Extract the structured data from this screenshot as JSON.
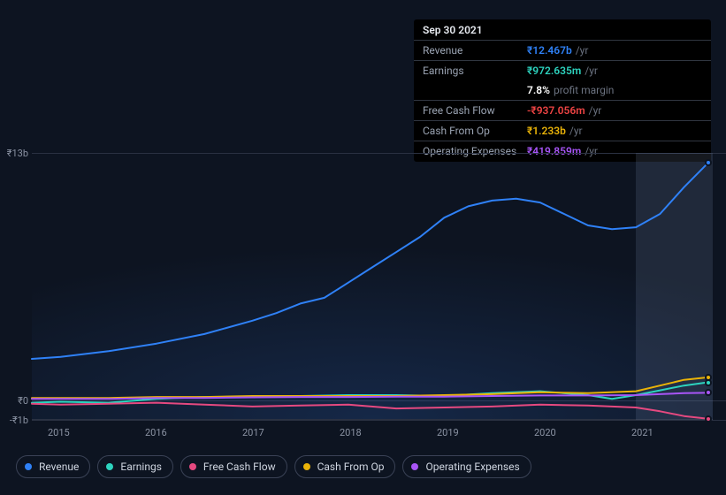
{
  "tooltip": {
    "date": "Sep 30 2021",
    "rows": [
      {
        "label": "Revenue",
        "value": "₹12.467b",
        "suffix": "/yr",
        "color": "#2f81f7"
      },
      {
        "label": "Earnings",
        "value": "₹972.635m",
        "suffix": "/yr",
        "color": "#2dd4bf"
      },
      {
        "label": "",
        "value": "7.8%",
        "suffix": "profit margin",
        "color": "#ffffff",
        "noborder": true
      },
      {
        "label": "Free Cash Flow",
        "value": "-₹937.056m",
        "suffix": "/yr",
        "color": "#ef4444"
      },
      {
        "label": "Cash From Op",
        "value": "₹1.233b",
        "suffix": "/yr",
        "color": "#eab308"
      },
      {
        "label": "Operating Expenses",
        "value": "₹419.859m",
        "suffix": "/yr",
        "color": "#a855f7"
      }
    ]
  },
  "chart": {
    "type": "line",
    "background_color": "#0d1421",
    "grid_color": "#2a3142",
    "x_categories": [
      "2015",
      "2016",
      "2017",
      "2018",
      "2019",
      "2020",
      "2021"
    ],
    "y_ticks": [
      {
        "label": "₹13b",
        "value": 13
      },
      {
        "label": "₹0",
        "value": 0
      },
      {
        "label": "-₹1b",
        "value": -1
      }
    ],
    "ylim": [
      -1,
      13
    ],
    "xlim": [
      2014.7,
      2021.8
    ],
    "hover_x": 2021.75,
    "hover_band_start": 2021.0,
    "line_width": 2,
    "series": [
      {
        "name": "Revenue",
        "color": "#2f81f7",
        "points": [
          [
            2014.7,
            2.2
          ],
          [
            2015.0,
            2.3
          ],
          [
            2015.5,
            2.6
          ],
          [
            2016.0,
            3.0
          ],
          [
            2016.5,
            3.5
          ],
          [
            2017.0,
            4.2
          ],
          [
            2017.25,
            4.6
          ],
          [
            2017.5,
            5.1
          ],
          [
            2017.75,
            5.4
          ],
          [
            2018.0,
            6.2
          ],
          [
            2018.25,
            7.0
          ],
          [
            2018.5,
            7.8
          ],
          [
            2018.75,
            8.6
          ],
          [
            2019.0,
            9.6
          ],
          [
            2019.25,
            10.2
          ],
          [
            2019.5,
            10.5
          ],
          [
            2019.75,
            10.6
          ],
          [
            2020.0,
            10.4
          ],
          [
            2020.25,
            9.8
          ],
          [
            2020.5,
            9.2
          ],
          [
            2020.75,
            9.0
          ],
          [
            2021.0,
            9.1
          ],
          [
            2021.25,
            9.8
          ],
          [
            2021.5,
            11.2
          ],
          [
            2021.75,
            12.47
          ]
        ]
      },
      {
        "name": "Earnings",
        "color": "#2dd4bf",
        "points": [
          [
            2014.7,
            -0.1
          ],
          [
            2015.0,
            -0.05
          ],
          [
            2015.5,
            -0.1
          ],
          [
            2016.0,
            0.1
          ],
          [
            2016.5,
            0.2
          ],
          [
            2017.0,
            0.2
          ],
          [
            2017.5,
            0.25
          ],
          [
            2018.0,
            0.3
          ],
          [
            2018.5,
            0.3
          ],
          [
            2019.0,
            0.25
          ],
          [
            2019.5,
            0.4
          ],
          [
            2020.0,
            0.5
          ],
          [
            2020.5,
            0.3
          ],
          [
            2020.75,
            0.1
          ],
          [
            2021.0,
            0.3
          ],
          [
            2021.25,
            0.55
          ],
          [
            2021.5,
            0.8
          ],
          [
            2021.75,
            0.97
          ]
        ]
      },
      {
        "name": "Free Cash Flow",
        "color": "#e64980",
        "points": [
          [
            2014.7,
            -0.15
          ],
          [
            2015.0,
            -0.2
          ],
          [
            2015.5,
            -0.15
          ],
          [
            2016.0,
            -0.1
          ],
          [
            2016.5,
            -0.2
          ],
          [
            2017.0,
            -0.3
          ],
          [
            2017.5,
            -0.25
          ],
          [
            2018.0,
            -0.2
          ],
          [
            2018.5,
            -0.4
          ],
          [
            2019.0,
            -0.35
          ],
          [
            2019.5,
            -0.3
          ],
          [
            2020.0,
            -0.2
          ],
          [
            2020.5,
            -0.25
          ],
          [
            2021.0,
            -0.35
          ],
          [
            2021.25,
            -0.55
          ],
          [
            2021.5,
            -0.8
          ],
          [
            2021.75,
            -0.94
          ]
        ]
      },
      {
        "name": "Cash From Op",
        "color": "#eab308",
        "points": [
          [
            2014.7,
            0.15
          ],
          [
            2015.0,
            0.15
          ],
          [
            2015.5,
            0.15
          ],
          [
            2016.0,
            0.2
          ],
          [
            2016.5,
            0.2
          ],
          [
            2017.0,
            0.25
          ],
          [
            2017.5,
            0.25
          ],
          [
            2018.0,
            0.25
          ],
          [
            2018.5,
            0.25
          ],
          [
            2019.0,
            0.3
          ],
          [
            2019.5,
            0.35
          ],
          [
            2020.0,
            0.45
          ],
          [
            2020.5,
            0.4
          ],
          [
            2021.0,
            0.5
          ],
          [
            2021.25,
            0.8
          ],
          [
            2021.5,
            1.1
          ],
          [
            2021.75,
            1.23
          ]
        ]
      },
      {
        "name": "Operating Expenses",
        "color": "#a855f7",
        "points": [
          [
            2014.7,
            0.1
          ],
          [
            2015.0,
            0.1
          ],
          [
            2015.5,
            0.1
          ],
          [
            2016.0,
            0.15
          ],
          [
            2016.5,
            0.15
          ],
          [
            2017.0,
            0.18
          ],
          [
            2017.5,
            0.2
          ],
          [
            2018.0,
            0.2
          ],
          [
            2018.5,
            0.22
          ],
          [
            2019.0,
            0.22
          ],
          [
            2019.5,
            0.25
          ],
          [
            2020.0,
            0.28
          ],
          [
            2020.5,
            0.28
          ],
          [
            2021.0,
            0.3
          ],
          [
            2021.25,
            0.35
          ],
          [
            2021.5,
            0.4
          ],
          [
            2021.75,
            0.42
          ]
        ]
      }
    ]
  },
  "legend": [
    {
      "label": "Revenue",
      "color": "#2f81f7"
    },
    {
      "label": "Earnings",
      "color": "#2dd4bf"
    },
    {
      "label": "Free Cash Flow",
      "color": "#e64980"
    },
    {
      "label": "Cash From Op",
      "color": "#eab308"
    },
    {
      "label": "Operating Expenses",
      "color": "#a855f7"
    }
  ]
}
